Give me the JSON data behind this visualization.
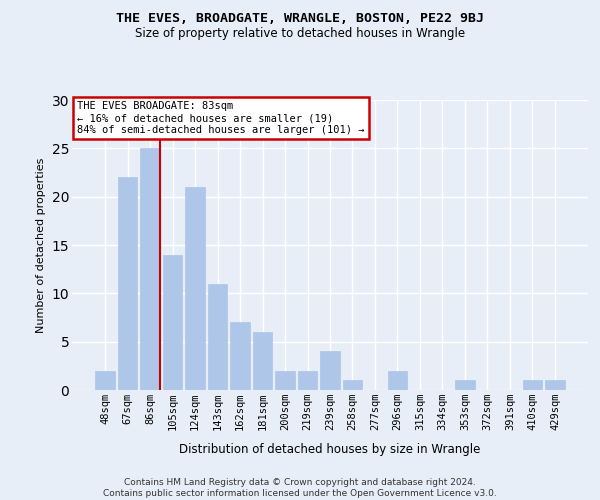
{
  "title": "THE EVES, BROADGATE, WRANGLE, BOSTON, PE22 9BJ",
  "subtitle": "Size of property relative to detached houses in Wrangle",
  "xlabel": "Distribution of detached houses by size in Wrangle",
  "ylabel": "Number of detached properties",
  "categories": [
    "48sqm",
    "67sqm",
    "86sqm",
    "105sqm",
    "124sqm",
    "143sqm",
    "162sqm",
    "181sqm",
    "200sqm",
    "219sqm",
    "239sqm",
    "258sqm",
    "277sqm",
    "296sqm",
    "315sqm",
    "334sqm",
    "353sqm",
    "372sqm",
    "391sqm",
    "410sqm",
    "429sqm"
  ],
  "values": [
    2,
    22,
    25,
    14,
    21,
    11,
    7,
    6,
    2,
    2,
    4,
    1,
    0,
    2,
    0,
    0,
    1,
    0,
    0,
    1,
    1
  ],
  "bar_color": "#aec6e8",
  "redline_index": 2,
  "redline_color": "#cc0000",
  "annotation_text": "THE EVES BROADGATE: 83sqm\n← 16% of detached houses are smaller (19)\n84% of semi-detached houses are larger (101) →",
  "annotation_box_facecolor": "#ffffff",
  "annotation_box_edgecolor": "#cc0000",
  "ylim": [
    0,
    30
  ],
  "yticks": [
    0,
    5,
    10,
    15,
    20,
    25,
    30
  ],
  "plot_bg_color": "#e8eef8",
  "fig_bg_color": "#e8eef8",
  "grid_color": "#ffffff",
  "footer_line1": "Contains HM Land Registry data © Crown copyright and database right 2024.",
  "footer_line2": "Contains public sector information licensed under the Open Government Licence v3.0."
}
